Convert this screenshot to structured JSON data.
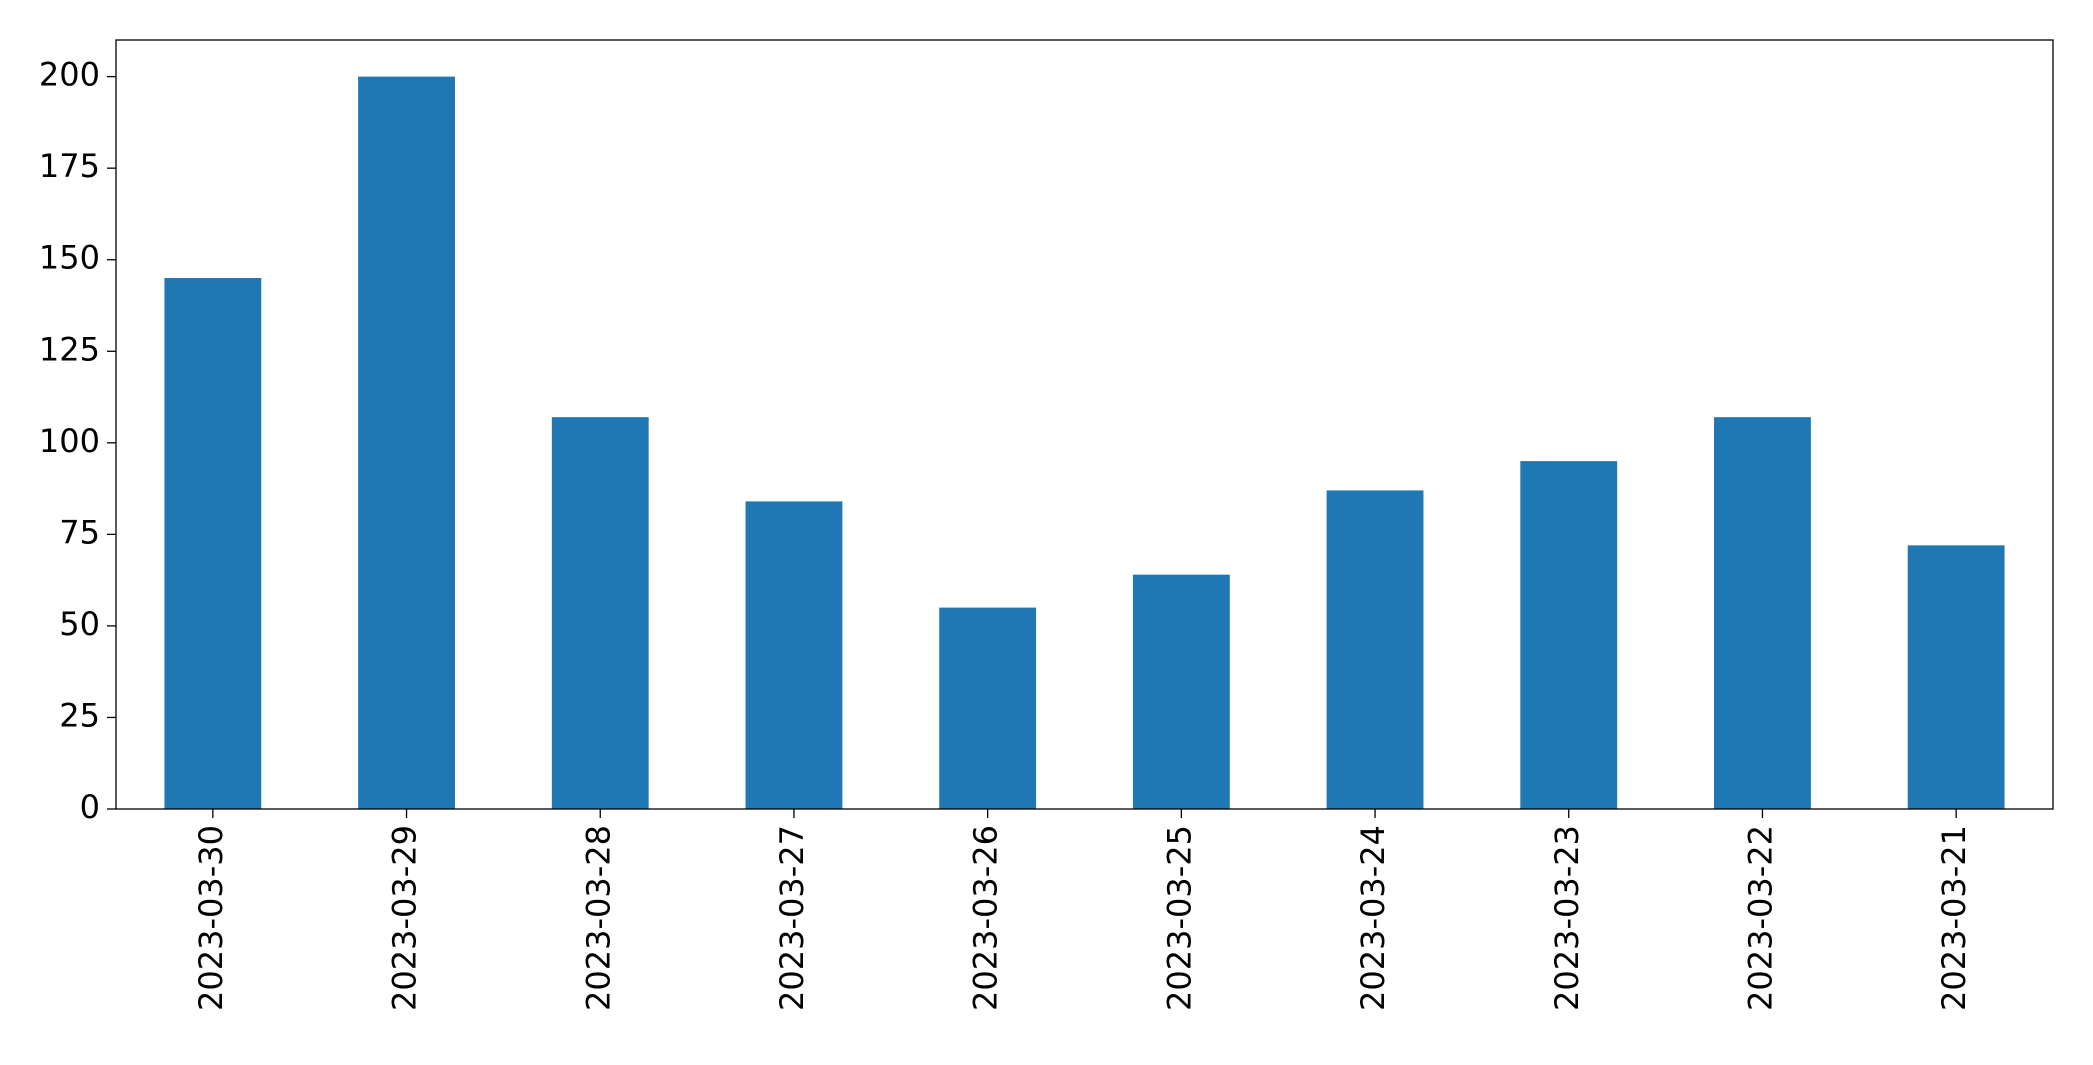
{
  "chart_data": {
    "type": "bar",
    "categories": [
      "2023-03-30",
      "2023-03-29",
      "2023-03-28",
      "2023-03-27",
      "2023-03-26",
      "2023-03-25",
      "2023-03-24",
      "2023-03-23",
      "2023-03-22",
      "2023-03-21"
    ],
    "values": [
      145,
      200,
      107,
      84,
      55,
      64,
      87,
      95,
      107,
      72
    ],
    "color": "#1f77b4",
    "ylim": [
      0,
      210
    ],
    "yticks": [
      0,
      25,
      50,
      75,
      100,
      125,
      150,
      175,
      200
    ],
    "grid": false
  }
}
